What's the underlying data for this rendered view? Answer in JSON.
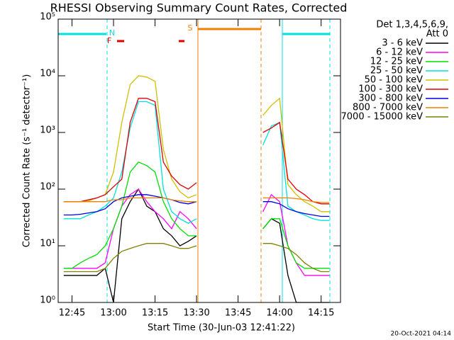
{
  "chart_data": {
    "type": "line",
    "title": "RHESSI Observing Summary Count Rates, Corrected",
    "x_label": "Start Time (30-Jun-03 12:41:22)",
    "y_label": "Corrected Count Rate (s⁻¹ detector⁻¹)",
    "footer": "20-Oct-2021 04:14",
    "legend_title": [
      "Det 1,3,4,5,6,9,",
      "Att 0"
    ],
    "legend_position": "right",
    "log_y": true,
    "annotations": [
      "N",
      "F",
      "S"
    ],
    "xlim": [
      "12:40",
      "14:22"
    ],
    "xticks": [
      "12:45",
      "13:00",
      "13:15",
      "13:30",
      "13:45",
      "14:00",
      "14:15"
    ],
    "ylim": [
      1,
      100000
    ],
    "yticks": [
      {
        "value": 1,
        "label": "10⁰"
      },
      {
        "value": 10,
        "label": "10¹"
      },
      {
        "value": 100,
        "label": "10²"
      },
      {
        "value": 1000,
        "label": "10³"
      },
      {
        "value": 10000,
        "label": "10⁴"
      },
      {
        "value": 100000,
        "label": "10⁵"
      }
    ],
    "x": [
      "12:42",
      "12:45",
      "12:48",
      "12:51",
      "12:54",
      "12:57",
      "13:00",
      "13:03",
      "13:06",
      "13:09",
      "13:12",
      "13:15",
      "13:18",
      "13:21",
      "13:24",
      "13:27",
      "13:30",
      "13:42",
      "13:54",
      "13:57",
      "14:00",
      "14:03",
      "14:06",
      "14:09",
      "14:12",
      "14:15",
      "14:18"
    ],
    "series": [
      {
        "name": "3 - 6 keV",
        "color": "#000000",
        "values": [
          3,
          3,
          3,
          3,
          3,
          4,
          1,
          30,
          60,
          100,
          50,
          40,
          20,
          15,
          10,
          12,
          15,
          null,
          20,
          30,
          25,
          3,
          1,
          1,
          1,
          1,
          1
        ]
      },
      {
        "name": "6 - 12 keV",
        "color": "#ff00ff",
        "values": [
          4,
          4,
          4,
          4,
          4,
          5,
          20,
          50,
          80,
          100,
          60,
          40,
          30,
          20,
          40,
          30,
          20,
          null,
          40,
          80,
          60,
          10,
          5,
          3,
          3,
          3,
          3
        ]
      },
      {
        "name": "12 - 25 keV",
        "color": "#00e000",
        "values": [
          4,
          4,
          5,
          6,
          7,
          10,
          20,
          50,
          200,
          300,
          260,
          200,
          60,
          30,
          20,
          15,
          15,
          null,
          20,
          30,
          30,
          10,
          5,
          4,
          4,
          4,
          4
        ]
      },
      {
        "name": "25 - 50 keV",
        "color": "#00e0e0",
        "values": [
          30,
          30,
          30,
          35,
          40,
          50,
          70,
          200,
          1200,
          3500,
          3500,
          3000,
          100,
          40,
          30,
          25,
          30,
          null,
          600,
          1300,
          1500,
          50,
          40,
          35,
          30,
          28,
          28
        ]
      },
      {
        "name": "50 - 100 keV",
        "color": "#d0c000",
        "values": [
          60,
          60,
          60,
          62,
          70,
          80,
          200,
          1500,
          7000,
          10000,
          9500,
          8000,
          500,
          150,
          90,
          70,
          80,
          null,
          2000,
          3000,
          4000,
          120,
          80,
          60,
          50,
          40,
          40
        ]
      },
      {
        "name": "100 - 300 keV",
        "color": "#e00000",
        "values": [
          60,
          60,
          60,
          65,
          70,
          80,
          110,
          150,
          1500,
          4000,
          4000,
          3500,
          300,
          170,
          120,
          100,
          130,
          null,
          1000,
          1200,
          1500,
          150,
          100,
          80,
          60,
          55,
          55
        ]
      },
      {
        "name": "300 - 800 keV",
        "color": "#0000e0",
        "values": [
          35,
          35,
          36,
          38,
          40,
          45,
          60,
          70,
          75,
          80,
          80,
          75,
          70,
          65,
          58,
          55,
          60,
          null,
          60,
          60,
          55,
          45,
          40,
          37,
          35,
          33,
          33
        ]
      },
      {
        "name": "800 - 7000 keV",
        "color": "#f08000",
        "values": [
          60,
          60,
          60,
          60,
          60,
          60,
          65,
          65,
          70,
          70,
          70,
          70,
          70,
          65,
          62,
          60,
          60,
          null,
          70,
          70,
          70,
          70,
          68,
          65,
          60,
          58,
          58
        ]
      },
      {
        "name": "7000 - 15000 keV",
        "color": "#808000",
        "values": [
          3.5,
          3.5,
          3.5,
          3.5,
          3.5,
          4,
          6,
          8,
          9,
          10,
          11,
          11,
          11,
          10,
          9,
          9,
          10,
          null,
          11,
          11,
          10,
          9,
          7,
          5,
          4,
          3.5,
          3.5
        ]
      }
    ]
  }
}
